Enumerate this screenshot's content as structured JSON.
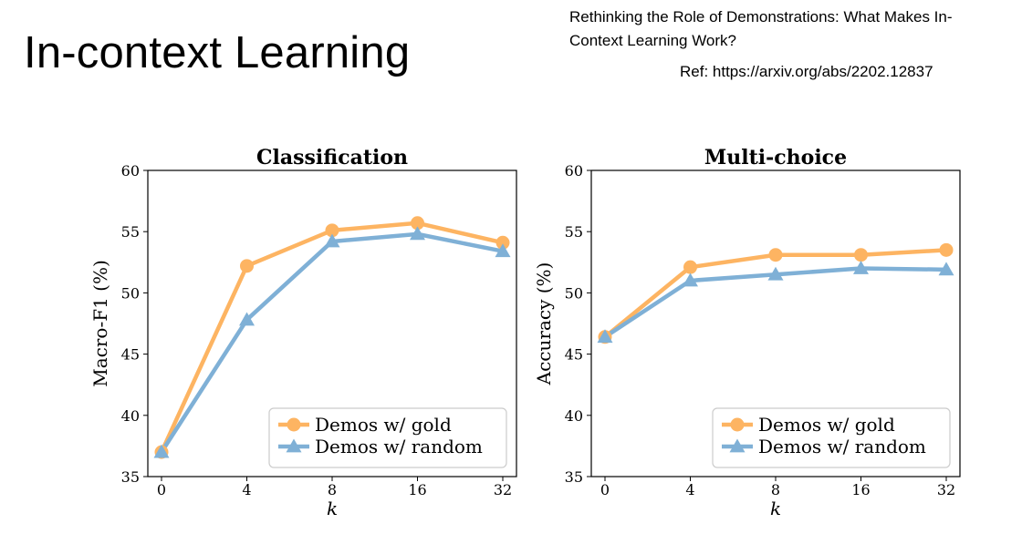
{
  "slide": {
    "title": "In-context Learning",
    "reference_title": "Rethinking the Role of Demonstrations: What Makes In-Context Learning Work?",
    "reference_link": "Ref: https://arxiv.org/abs/2202.12837"
  },
  "colors": {
    "gold": "#FDB462",
    "random": "#7FB0D6"
  },
  "chart_data": [
    {
      "type": "line",
      "title": "Classification",
      "xlabel": "k",
      "ylabel": "Macro-F1 (%)",
      "categories": [
        "0",
        "4",
        "8",
        "16",
        "32"
      ],
      "ylim": [
        35,
        60
      ],
      "yticks": [
        35,
        40,
        45,
        50,
        55,
        60
      ],
      "grid": false,
      "legend_position": "lower-right",
      "series": [
        {
          "name": "Demos w/ gold",
          "marker": "circle",
          "values": [
            37.0,
            52.2,
            55.1,
            55.7,
            54.1
          ]
        },
        {
          "name": "Demos w/ random",
          "marker": "triangle",
          "values": [
            37.0,
            47.8,
            54.2,
            54.8,
            53.4
          ]
        }
      ]
    },
    {
      "type": "line",
      "title": "Multi-choice",
      "xlabel": "k",
      "ylabel": "Accuracy (%)",
      "categories": [
        "0",
        "4",
        "8",
        "16",
        "32"
      ],
      "ylim": [
        35,
        60
      ],
      "yticks": [
        35,
        40,
        45,
        50,
        55,
        60
      ],
      "grid": false,
      "legend_position": "lower-right",
      "series": [
        {
          "name": "Demos w/ gold",
          "marker": "circle",
          "values": [
            46.4,
            52.1,
            53.1,
            53.1,
            53.5
          ]
        },
        {
          "name": "Demos w/ random",
          "marker": "triangle",
          "values": [
            46.4,
            51.0,
            51.5,
            52.0,
            51.9
          ]
        }
      ]
    }
  ]
}
